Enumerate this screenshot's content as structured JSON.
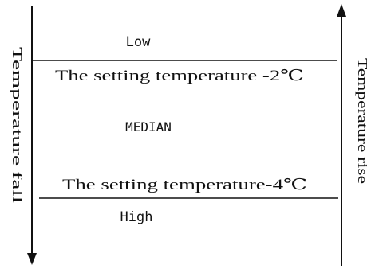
{
  "zones": {
    "top_label": "Low",
    "middle_label": "MEDIAN",
    "bottom_label": "High"
  },
  "thresholds": {
    "upper": "The setting temperature -2℃",
    "lower": "The setting temperature-4℃"
  },
  "axes": {
    "left_label": "Temperature fall",
    "right_label": "Temperature rise"
  },
  "colors": {
    "ink": "#111111",
    "background": "#ffffff"
  }
}
